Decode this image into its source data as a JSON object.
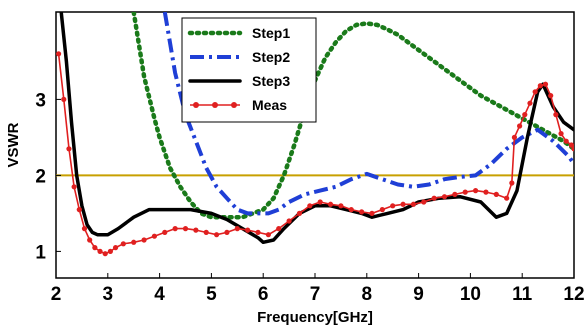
{
  "chart_data": {
    "type": "line",
    "title": "",
    "xlabel": "Frequency[GHz]",
    "ylabel": "VSWR",
    "xlim": [
      2,
      12
    ],
    "ylim": [
      0.65,
      4.15
    ],
    "xticks": [
      "2",
      "3",
      "4",
      "5",
      "6",
      "7",
      "8",
      "9",
      "10",
      "11",
      "12"
    ],
    "yticks": [
      "1",
      "2",
      "3"
    ],
    "grid": false,
    "legend_position": "top-center",
    "reference_line": {
      "y": 2,
      "color": "#c8a000"
    },
    "series": [
      {
        "name": "Step1",
        "color": "#1a7a1a",
        "style": "dotted",
        "x": [
          3.5,
          3.7,
          3.9,
          4.0,
          4.2,
          4.4,
          4.6,
          4.8,
          5.0,
          5.2,
          5.4,
          5.6,
          5.8,
          6.0,
          6.2,
          6.4,
          6.6,
          6.8,
          7.0,
          7.2,
          7.4,
          7.6,
          7.8,
          8.0,
          8.2,
          8.4,
          8.6,
          8.8,
          9.0,
          9.4,
          9.8,
          10.2,
          10.6,
          11.0,
          11.4,
          11.8,
          12.0
        ],
        "y": [
          4.15,
          3.3,
          2.75,
          2.5,
          2.1,
          1.85,
          1.65,
          1.5,
          1.45,
          1.45,
          1.45,
          1.45,
          1.5,
          1.55,
          1.7,
          2.0,
          2.4,
          2.85,
          3.25,
          3.55,
          3.75,
          3.9,
          3.98,
          4.0,
          3.98,
          3.92,
          3.85,
          3.75,
          3.65,
          3.45,
          3.25,
          3.05,
          2.9,
          2.75,
          2.6,
          2.45,
          2.35
        ]
      },
      {
        "name": "Step2",
        "color": "#1f3fd6",
        "style": "dashdot",
        "x": [
          4.1,
          4.3,
          4.5,
          4.7,
          4.9,
          5.1,
          5.3,
          5.5,
          5.7,
          5.9,
          6.1,
          6.3,
          6.5,
          6.8,
          7.1,
          7.4,
          7.7,
          8.0,
          8.3,
          8.6,
          8.9,
          9.2,
          9.5,
          9.8,
          10.1,
          10.4,
          10.7,
          11.0,
          11.3,
          11.6,
          11.9,
          12.0
        ],
        "y": [
          4.15,
          3.35,
          2.8,
          2.45,
          2.1,
          1.85,
          1.7,
          1.55,
          1.5,
          1.5,
          1.5,
          1.55,
          1.65,
          1.75,
          1.8,
          1.85,
          1.95,
          2.02,
          1.95,
          1.88,
          1.85,
          1.88,
          1.95,
          1.98,
          2.0,
          2.15,
          2.35,
          2.5,
          2.6,
          2.45,
          2.25,
          2.15
        ]
      },
      {
        "name": "Step3",
        "color": "#000000",
        "style": "solid",
        "x": [
          2.1,
          2.2,
          2.3,
          2.4,
          2.5,
          2.6,
          2.7,
          2.8,
          3.0,
          3.2,
          3.5,
          3.8,
          4.2,
          4.6,
          5.0,
          5.3,
          5.6,
          5.9,
          6.0,
          6.2,
          6.4,
          6.7,
          7.0,
          7.3,
          7.6,
          7.9,
          8.1,
          8.4,
          8.7,
          9.0,
          9.4,
          9.8,
          10.2,
          10.5,
          10.7,
          10.9,
          11.1,
          11.3,
          11.4,
          11.6,
          11.8,
          12.0
        ],
        "y": [
          4.15,
          3.5,
          2.7,
          2.0,
          1.6,
          1.35,
          1.25,
          1.22,
          1.22,
          1.3,
          1.45,
          1.55,
          1.55,
          1.55,
          1.5,
          1.42,
          1.3,
          1.18,
          1.12,
          1.15,
          1.3,
          1.5,
          1.6,
          1.6,
          1.55,
          1.5,
          1.45,
          1.5,
          1.55,
          1.65,
          1.7,
          1.72,
          1.65,
          1.45,
          1.5,
          1.8,
          2.5,
          3.1,
          3.2,
          2.9,
          2.7,
          2.6
        ]
      },
      {
        "name": "Meas",
        "color": "#e02020",
        "style": "solid-marker",
        "x": [
          2.05,
          2.15,
          2.25,
          2.35,
          2.45,
          2.55,
          2.65,
          2.75,
          2.85,
          2.95,
          3.05,
          3.15,
          3.3,
          3.5,
          3.7,
          3.9,
          4.1,
          4.3,
          4.5,
          4.7,
          4.9,
          5.1,
          5.3,
          5.5,
          5.7,
          5.9,
          6.1,
          6.3,
          6.5,
          6.7,
          6.9,
          7.1,
          7.3,
          7.5,
          7.7,
          7.9,
          8.1,
          8.3,
          8.5,
          8.7,
          8.9,
          9.1,
          9.3,
          9.5,
          9.7,
          9.9,
          10.1,
          10.3,
          10.5,
          10.7,
          10.8,
          10.85,
          10.95,
          11.05,
          11.15,
          11.25,
          11.35,
          11.45,
          11.55,
          11.65,
          11.75,
          11.85,
          11.95,
          12.0
        ],
        "y": [
          3.6,
          3.0,
          2.35,
          1.85,
          1.55,
          1.3,
          1.15,
          1.05,
          1.0,
          0.97,
          1.0,
          1.05,
          1.1,
          1.12,
          1.15,
          1.2,
          1.25,
          1.3,
          1.3,
          1.28,
          1.25,
          1.22,
          1.25,
          1.3,
          1.28,
          1.25,
          1.22,
          1.3,
          1.4,
          1.5,
          1.6,
          1.65,
          1.62,
          1.6,
          1.55,
          1.52,
          1.5,
          1.55,
          1.6,
          1.62,
          1.62,
          1.65,
          1.7,
          1.72,
          1.75,
          1.78,
          1.8,
          1.78,
          1.75,
          1.7,
          1.9,
          2.5,
          2.65,
          2.8,
          2.95,
          3.1,
          3.18,
          3.2,
          3.05,
          2.8,
          2.55,
          2.45,
          2.4,
          2.35
        ]
      }
    ]
  }
}
